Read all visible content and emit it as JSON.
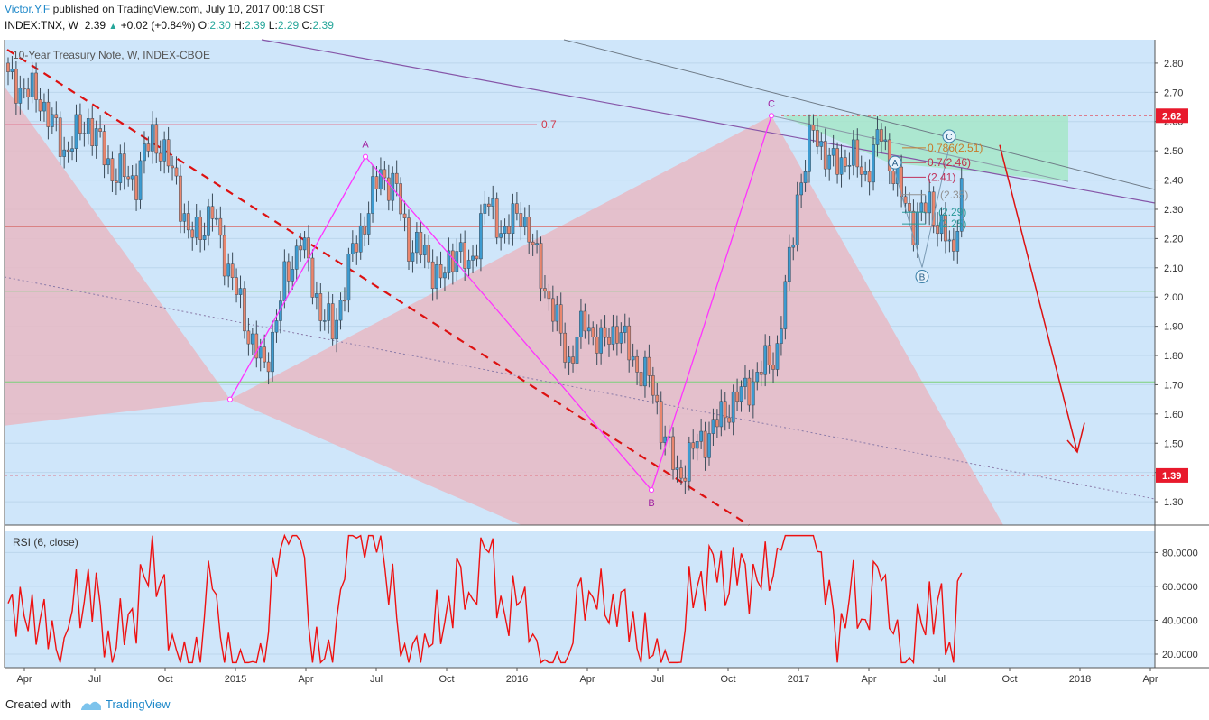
{
  "header": {
    "author": "Victor.Y.F",
    "published": "published on TradingView.com, July 10, 2017 00:18 CST",
    "symbol": "INDEX:TNX, W",
    "last": "2.39",
    "change": "+0.02 (+0.84%)",
    "o_label": "O:",
    "o_val": "2.30",
    "h_label": "H:",
    "h_val": "2.39",
    "l_label": "L:",
    "l_val": "2.29",
    "c_label": "C:",
    "c_val": "2.39"
  },
  "footer": {
    "created": "Created with",
    "brand": "TradingView",
    "icon": "tradingview-logo-icon"
  },
  "colors": {
    "background": "#cfe6fa",
    "bull": "#3d9bd0",
    "bear": "#e9866e",
    "zone_pink": "#e7b9c3",
    "zone_green": "#a6e6c8",
    "pattern": "#ff33ff",
    "rsi": "#ee1111",
    "trend": "#dd1111",
    "channel": "#8656a8"
  },
  "chart_data": [
    {
      "type": "candlestick",
      "title": "10-Year Treasury Note, W, INDEX-CBOE",
      "ylim": [
        1.22,
        2.88
      ],
      "yticks": [
        "2.80",
        "2.70",
        "2.60",
        "2.50",
        "2.40",
        "2.30",
        "2.20",
        "2.10",
        "2.00",
        "1.90",
        "1.80",
        "1.70",
        "1.60",
        "1.50",
        "1.40",
        "1.30"
      ],
      "price_marks": [
        {
          "label": "2.62",
          "value": 2.62
        },
        {
          "label": "1.39",
          "value": 1.39
        }
      ],
      "xticks": [
        "Apr",
        "Jul",
        "Oct",
        "2015",
        "Apr",
        "Jul",
        "Oct",
        "2016",
        "Apr",
        "Jul",
        "Oct",
        "2017",
        "Apr",
        "Jul",
        "Oct",
        "2018",
        "Apr"
      ],
      "pattern_points": [
        {
          "label": "A",
          "value": 2.48
        },
        {
          "label": "B",
          "value": 1.34
        },
        {
          "label": "C",
          "value": 2.62
        }
      ],
      "fib_labels": [
        {
          "label": "0.7",
          "value": 2.59
        },
        {
          "label": "0.786(2.51)",
          "value": 2.51
        },
        {
          "label": "0.7(2.46)",
          "value": 2.46
        },
        {
          "label": "(2.41)",
          "value": 2.41
        },
        {
          "label": "(2.35)",
          "value": 2.35
        },
        {
          "label": "(2.29)",
          "value": 2.29
        },
        {
          "label": "(2.25)",
          "value": 2.25
        }
      ],
      "wave_labels": [
        {
          "label": "A",
          "value": 2.46
        },
        {
          "label": "B",
          "value": 2.07
        },
        {
          "label": "C",
          "value": 2.55
        }
      ],
      "anchors": [
        [
          0,
          2.74
        ],
        [
          8,
          2.68
        ],
        [
          14,
          2.5
        ],
        [
          20,
          2.6
        ],
        [
          26,
          2.43
        ],
        [
          32,
          2.4
        ],
        [
          36,
          2.56
        ],
        [
          42,
          2.4
        ],
        [
          45,
          2.2
        ],
        [
          51,
          2.28
        ],
        [
          55,
          2.1
        ],
        [
          60,
          1.88
        ],
        [
          64,
          1.75
        ],
        [
          69,
          2.05
        ],
        [
          73,
          2.2
        ],
        [
          78,
          1.95
        ],
        [
          81,
          1.88
        ],
        [
          86,
          2.15
        ],
        [
          90,
          2.3
        ],
        [
          93,
          2.43
        ],
        [
          97,
          2.36
        ],
        [
          100,
          2.18
        ],
        [
          104,
          2.15
        ],
        [
          108,
          2.05
        ],
        [
          112,
          2.18
        ],
        [
          115,
          2.08
        ],
        [
          119,
          2.32
        ],
        [
          124,
          2.22
        ],
        [
          128,
          2.3
        ],
        [
          132,
          2.12
        ],
        [
          136,
          1.95
        ],
        [
          140,
          1.78
        ],
        [
          144,
          1.92
        ],
        [
          148,
          1.83
        ],
        [
          152,
          1.9
        ],
        [
          156,
          1.78
        ],
        [
          160,
          1.72
        ],
        [
          164,
          1.52
        ],
        [
          167,
          1.38
        ],
        [
          171,
          1.48
        ],
        [
          176,
          1.55
        ],
        [
          180,
          1.63
        ],
        [
          184,
          1.68
        ],
        [
          188,
          1.75
        ],
        [
          192,
          1.82
        ],
        [
          195,
          2.12
        ],
        [
          197,
          2.35
        ],
        [
          199,
          2.45
        ],
        [
          201,
          2.58
        ],
        [
          203,
          2.52
        ],
        [
          205,
          2.45
        ],
        [
          210,
          2.48
        ],
        [
          214,
          2.42
        ],
        [
          218,
          2.56
        ],
        [
          222,
          2.38
        ],
        [
          226,
          2.25
        ],
        [
          230,
          2.32
        ],
        [
          234,
          2.2
        ],
        [
          236,
          2.14
        ],
        [
          237,
          2.3
        ],
        [
          238,
          2.39
        ]
      ]
    },
    {
      "type": "line",
      "title": "RSI (6, close)",
      "ylim": [
        12,
        93
      ],
      "yticks": [
        "80.0000",
        "60.0000",
        "40.0000",
        "20.0000"
      ]
    }
  ]
}
